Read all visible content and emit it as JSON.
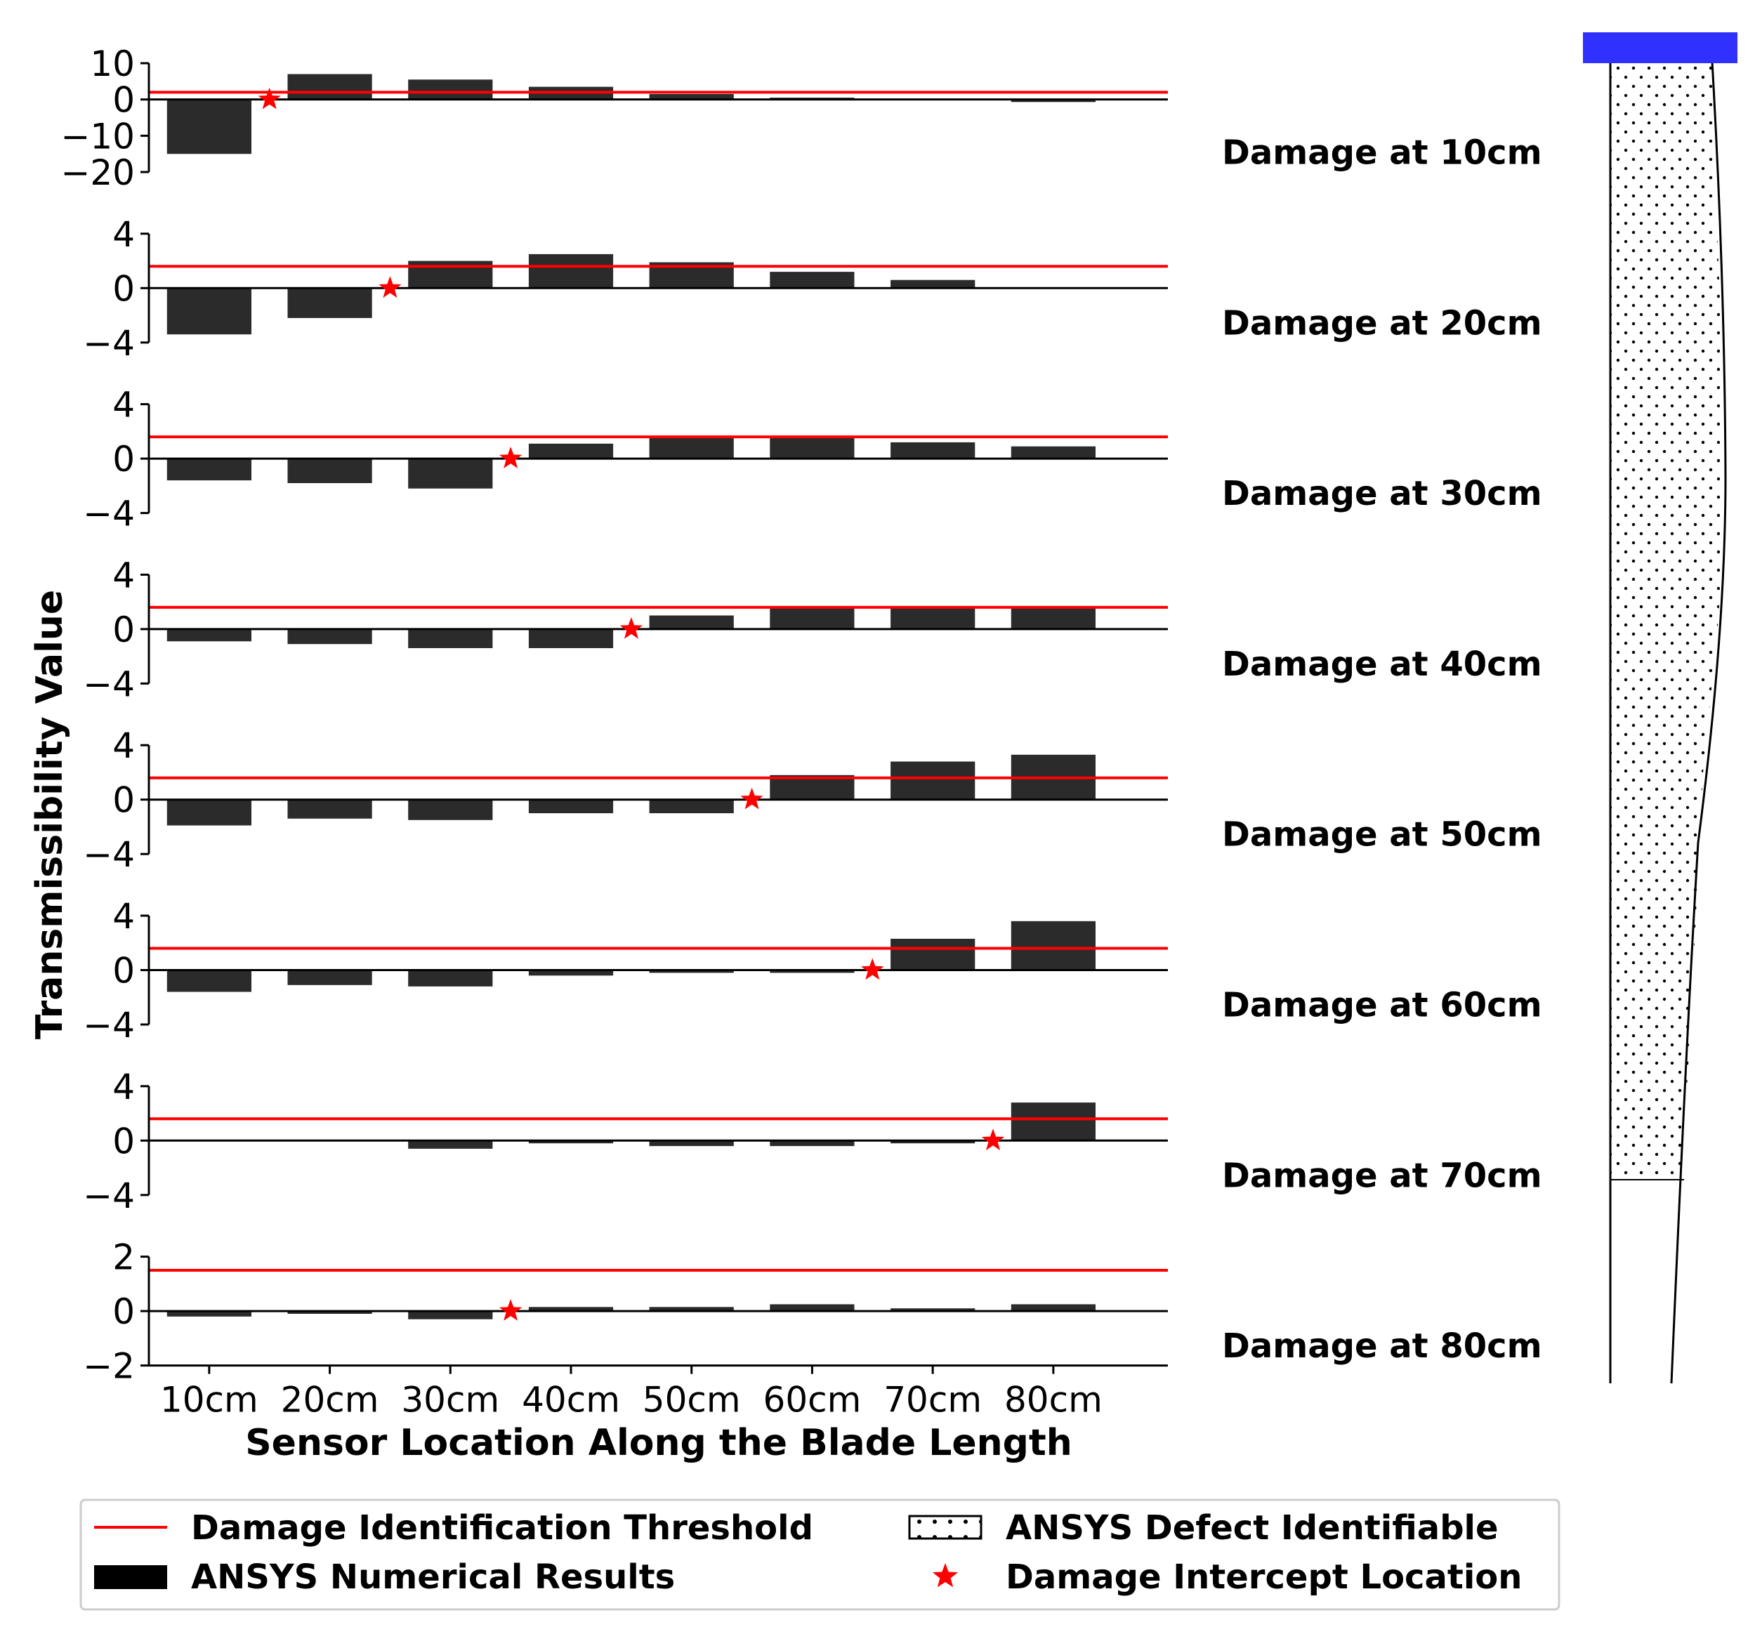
{
  "chart_data": {
    "type": "bar",
    "ylabel": "Transmissibility Value",
    "xlabel": "Sensor Location Along the Blade Length",
    "categories": [
      "10cm",
      "20cm",
      "30cm",
      "40cm",
      "50cm",
      "60cm",
      "70cm",
      "80cm"
    ],
    "threshold_color": "#ff0000",
    "bar_color": "#2b2b2b",
    "star_color": "#ff0000",
    "blade_cap_color": "#3030ff",
    "panels": [
      {
        "title": "Damage at 10cm",
        "ylim": [
          -20,
          10
        ],
        "yticks": [
          10,
          0,
          -10,
          -20
        ],
        "ytick_labels": [
          "10",
          "0",
          "−10",
          "−20"
        ],
        "values": [
          -15,
          7,
          5.5,
          3.5,
          1.5,
          0.5,
          0,
          -0.7
        ],
        "threshold": 2,
        "intercept": 15
      },
      {
        "title": "Damage at 20cm",
        "ylim": [
          -4,
          4
        ],
        "yticks": [
          4,
          0,
          -4
        ],
        "ytick_labels": [
          "4",
          "0",
          "−4"
        ],
        "values": [
          -3.4,
          -2.2,
          2.0,
          2.5,
          1.9,
          1.2,
          0.6,
          0
        ],
        "threshold": 1.6,
        "intercept": 25
      },
      {
        "title": "Damage at 30cm",
        "ylim": [
          -4,
          4
        ],
        "yticks": [
          4,
          0,
          -4
        ],
        "ytick_labels": [
          "4",
          "0",
          "−4"
        ],
        "values": [
          -1.6,
          -1.8,
          -2.2,
          1.1,
          1.6,
          1.6,
          1.2,
          0.9
        ],
        "threshold": 1.6,
        "intercept": 35
      },
      {
        "title": "Damage at 40cm",
        "ylim": [
          -4,
          4
        ],
        "yticks": [
          4,
          0,
          -4
        ],
        "ytick_labels": [
          "4",
          "0",
          "−4"
        ],
        "values": [
          -0.9,
          -1.1,
          -1.4,
          -1.4,
          1.0,
          1.6,
          1.6,
          1.6
        ],
        "threshold": 1.6,
        "intercept": 45
      },
      {
        "title": "Damage at 50cm",
        "ylim": [
          -4,
          4
        ],
        "yticks": [
          4,
          0,
          -4
        ],
        "ytick_labels": [
          "4",
          "0",
          "−4"
        ],
        "values": [
          -1.9,
          -1.4,
          -1.5,
          -1.0,
          -1.0,
          1.8,
          2.8,
          3.3
        ],
        "threshold": 1.6,
        "intercept": 55
      },
      {
        "title": "Damage at 60cm",
        "ylim": [
          -4,
          4
        ],
        "yticks": [
          4,
          0,
          -4
        ],
        "ytick_labels": [
          "4",
          "0",
          "−4"
        ],
        "values": [
          -1.6,
          -1.1,
          -1.2,
          -0.4,
          -0.2,
          -0.2,
          2.3,
          3.6
        ],
        "threshold": 1.6,
        "intercept": 65
      },
      {
        "title": "Damage at 70cm",
        "ylim": [
          -4,
          4
        ],
        "yticks": [
          4,
          0,
          -4
        ],
        "ytick_labels": [
          "4",
          "0",
          "−4"
        ],
        "values": [
          0,
          0,
          -0.6,
          -0.2,
          -0.4,
          -0.4,
          -0.2,
          2.8
        ],
        "threshold": 1.6,
        "intercept": 75
      },
      {
        "title": "Damage at 80cm",
        "ylim": [
          -2,
          2
        ],
        "yticks": [
          2,
          0,
          -2
        ],
        "ytick_labels": [
          "2",
          "0",
          "−2"
        ],
        "values": [
          -0.2,
          -0.1,
          -0.3,
          0.15,
          0.15,
          0.25,
          0.1,
          0.25
        ],
        "threshold": 1.5,
        "intercept": 35
      }
    ],
    "defect_fraction": 0.8,
    "legend": {
      "threshold_label": "Damage Identification Threshold",
      "numerical_label": "ANSYS Numerical Results",
      "defect_label": "ANSYS Defect Identifiable",
      "intercept_label": "Damage Intercept Location"
    }
  }
}
